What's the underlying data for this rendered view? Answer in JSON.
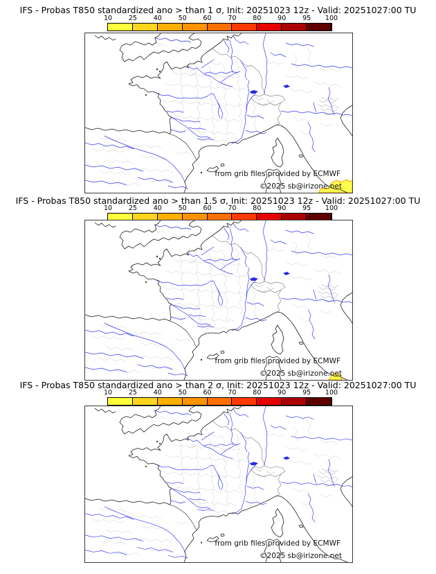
{
  "colorbar": {
    "tick_labels": [
      "10",
      "25",
      "40",
      "50",
      "60",
      "70",
      "80",
      "90",
      "95",
      "100"
    ],
    "segment_colors": [
      "#ffff3c",
      "#ffd51e",
      "#ffaf00",
      "#ff9300",
      "#ff6f00",
      "#ff3900",
      "#e60000",
      "#ab0000",
      "#5f0000"
    ]
  },
  "credits": {
    "source_line": "from grib files provided by ECMWF",
    "copyright_line": "©2025 sb@irizone.net"
  },
  "panels": [
    {
      "title": "IFS - Probas T850  standardized ano > than 1 σ, Init: 20251023 12z - Valid: 20251027:00 TU",
      "threshold": "1 σ",
      "overlay_points": "337,230 342,223 350,225 356,216 363,212 370,215 377,211 383,214 386,212 386,230"
    },
    {
      "title": "IFS - Probas T850  standardized ano > than 1.5 σ, Init: 20251023 12z - Valid: 20251027:00 TU",
      "threshold": "1.5 σ",
      "overlay_points": "352,230 356,224 362,220 368,223 371,227 371,230"
    },
    {
      "title": "IFS - Probas T850  standardized ano > than 2 σ, Init: 20251023 12z - Valid: 20251027:00 TU",
      "threshold": "2 σ",
      "overlay_points": ""
    }
  ]
}
